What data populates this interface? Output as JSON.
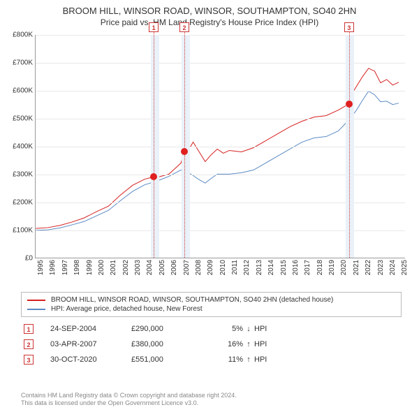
{
  "title": "BROOM HILL, WINSOR ROAD, WINSOR, SOUTHAMPTON, SO40 2HN",
  "subtitle": "Price paid vs. HM Land Registry's House Price Index (HPI)",
  "chart": {
    "type": "line",
    "background_color": "#ffffff",
    "grid_color": "#e8e8e8",
    "axis_color": "#999999",
    "y": {
      "min": 0,
      "max": 800000,
      "ticks": [
        0,
        100000,
        200000,
        300000,
        400000,
        500000,
        600000,
        700000,
        800000
      ],
      "tick_labels": [
        "£0",
        "£100K",
        "£200K",
        "£300K",
        "£400K",
        "£500K",
        "£600K",
        "£700K",
        "£800K"
      ],
      "label_fontsize": 10
    },
    "x": {
      "min": 1995,
      "max": 2025.5,
      "ticks": [
        1995,
        1996,
        1997,
        1998,
        1999,
        2000,
        2001,
        2002,
        2003,
        2004,
        2005,
        2006,
        2007,
        2008,
        2009,
        2010,
        2011,
        2012,
        2013,
        2014,
        2015,
        2016,
        2017,
        2018,
        2019,
        2020,
        2021,
        2022,
        2023,
        2024,
        2025
      ],
      "label_fontsize": 10
    },
    "highlight_bands": [
      {
        "from": 2004.5,
        "to": 2005.2,
        "color": "#eaf1f8"
      },
      {
        "from": 2007.0,
        "to": 2007.7,
        "color": "#eaf1f8"
      },
      {
        "from": 2020.55,
        "to": 2021.25,
        "color": "#eaf1f8"
      }
    ],
    "markers": [
      {
        "n": "1",
        "year": 2004.73,
        "price": 290000
      },
      {
        "n": "2",
        "year": 2007.26,
        "price": 380000
      },
      {
        "n": "3",
        "year": 2020.83,
        "price": 551000
      }
    ],
    "marker_line_color": "#cc3333",
    "marker_dot_color": "#e02020",
    "series": [
      {
        "id": "price_paid",
        "label": "BROOM HILL, WINSOR ROAD, WINSOR, SOUTHAMPTON, SO40 2HN (detached house)",
        "color": "#d62020",
        "line_width": 1.0,
        "data": [
          [
            1995,
            105000
          ],
          [
            1996,
            108000
          ],
          [
            1997,
            116000
          ],
          [
            1998,
            128000
          ],
          [
            1999,
            143000
          ],
          [
            2000,
            165000
          ],
          [
            2001,
            185000
          ],
          [
            2002,
            225000
          ],
          [
            2003,
            260000
          ],
          [
            2004,
            282000
          ],
          [
            2004.73,
            290000
          ],
          [
            2005,
            288000
          ],
          [
            2006,
            300000
          ],
          [
            2007,
            340000
          ],
          [
            2007.26,
            380000
          ],
          [
            2007.8,
            400000
          ],
          [
            2008,
            415000
          ],
          [
            2008.5,
            380000
          ],
          [
            2009,
            345000
          ],
          [
            2009.5,
            370000
          ],
          [
            2010,
            390000
          ],
          [
            2010.5,
            375000
          ],
          [
            2011,
            385000
          ],
          [
            2012,
            380000
          ],
          [
            2013,
            395000
          ],
          [
            2014,
            420000
          ],
          [
            2015,
            445000
          ],
          [
            2016,
            470000
          ],
          [
            2017,
            490000
          ],
          [
            2018,
            505000
          ],
          [
            2019,
            510000
          ],
          [
            2020,
            530000
          ],
          [
            2020.83,
            551000
          ],
          [
            2021,
            580000
          ],
          [
            2021.5,
            615000
          ],
          [
            2022,
            650000
          ],
          [
            2022.5,
            680000
          ],
          [
            2023,
            670000
          ],
          [
            2023.5,
            628000
          ],
          [
            2024,
            640000
          ],
          [
            2024.5,
            620000
          ],
          [
            2025,
            630000
          ]
        ]
      },
      {
        "id": "hpi",
        "label": "HPI: Average price, detached house, New Forest",
        "color": "#5b8bc4",
        "line_width": 1.0,
        "data": [
          [
            1995,
            98000
          ],
          [
            1996,
            100000
          ],
          [
            1997,
            107000
          ],
          [
            1998,
            118000
          ],
          [
            1999,
            130000
          ],
          [
            2000,
            150000
          ],
          [
            2001,
            170000
          ],
          [
            2002,
            205000
          ],
          [
            2003,
            238000
          ],
          [
            2004,
            262000
          ],
          [
            2005,
            275000
          ],
          [
            2006,
            292000
          ],
          [
            2007,
            315000
          ],
          [
            2007.8,
            300000
          ],
          [
            2008,
            295000
          ],
          [
            2008.5,
            280000
          ],
          [
            2009,
            268000
          ],
          [
            2009.5,
            285000
          ],
          [
            2010,
            300000
          ],
          [
            2011,
            300000
          ],
          [
            2012,
            305000
          ],
          [
            2013,
            315000
          ],
          [
            2014,
            340000
          ],
          [
            2015,
            365000
          ],
          [
            2016,
            390000
          ],
          [
            2017,
            415000
          ],
          [
            2018,
            430000
          ],
          [
            2019,
            435000
          ],
          [
            2020,
            455000
          ],
          [
            2021,
            500000
          ],
          [
            2021.5,
            530000
          ],
          [
            2022,
            565000
          ],
          [
            2022.5,
            598000
          ],
          [
            2023,
            585000
          ],
          [
            2023.5,
            560000
          ],
          [
            2024,
            562000
          ],
          [
            2024.5,
            550000
          ],
          [
            2025,
            555000
          ]
        ]
      }
    ]
  },
  "legend": {
    "border_color": "#bbbbbb",
    "fontsize": 10
  },
  "events": [
    {
      "n": "1",
      "date": "24-SEP-2004",
      "price": "£290,000",
      "pct": "5%",
      "dir": "down",
      "hpi": "HPI"
    },
    {
      "n": "2",
      "date": "03-APR-2007",
      "price": "£380,000",
      "pct": "16%",
      "dir": "up",
      "hpi": "HPI"
    },
    {
      "n": "3",
      "date": "30-OCT-2020",
      "price": "£551,000",
      "pct": "11%",
      "dir": "up",
      "hpi": "HPI"
    }
  ],
  "arrows": {
    "up": "↑",
    "down": "↓"
  },
  "footer_line1": "Contains HM Land Registry data © Crown copyright and database right 2024.",
  "footer_line2": "This data is licensed under the Open Government Licence v3.0."
}
